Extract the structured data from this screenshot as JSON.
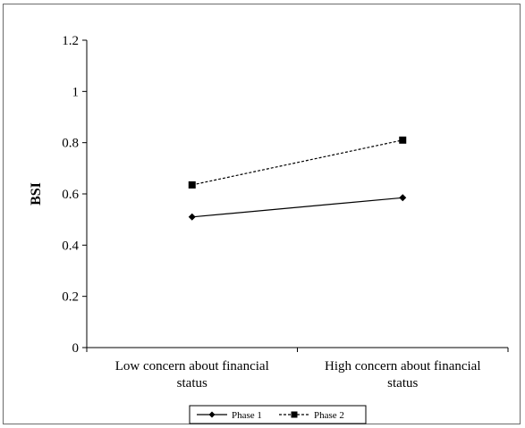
{
  "chart_data": {
    "type": "line",
    "title": "",
    "ylabel": "BSI",
    "xlabel": "",
    "categories": [
      [
        "Low concern about financial",
        "status"
      ],
      [
        "High concern about financial",
        "status"
      ]
    ],
    "ylim": [
      0,
      1.2
    ],
    "yticks": [
      0,
      0.2,
      0.4,
      0.6,
      0.8,
      1,
      1.2
    ],
    "ytick_labels": [
      "0",
      "0.2",
      "0.4",
      "0.6",
      "0.8",
      "1",
      "1.2"
    ],
    "grid": false,
    "legend_position": "bottom",
    "series": [
      {
        "name": "Phase 1",
        "values": [
          0.51,
          0.585
        ],
        "marker": "diamond",
        "line": "solid",
        "color": "#000000"
      },
      {
        "name": "Phase 2",
        "values": [
          0.635,
          0.81
        ],
        "marker": "square",
        "line": "dashed",
        "color": "#000000"
      }
    ]
  }
}
